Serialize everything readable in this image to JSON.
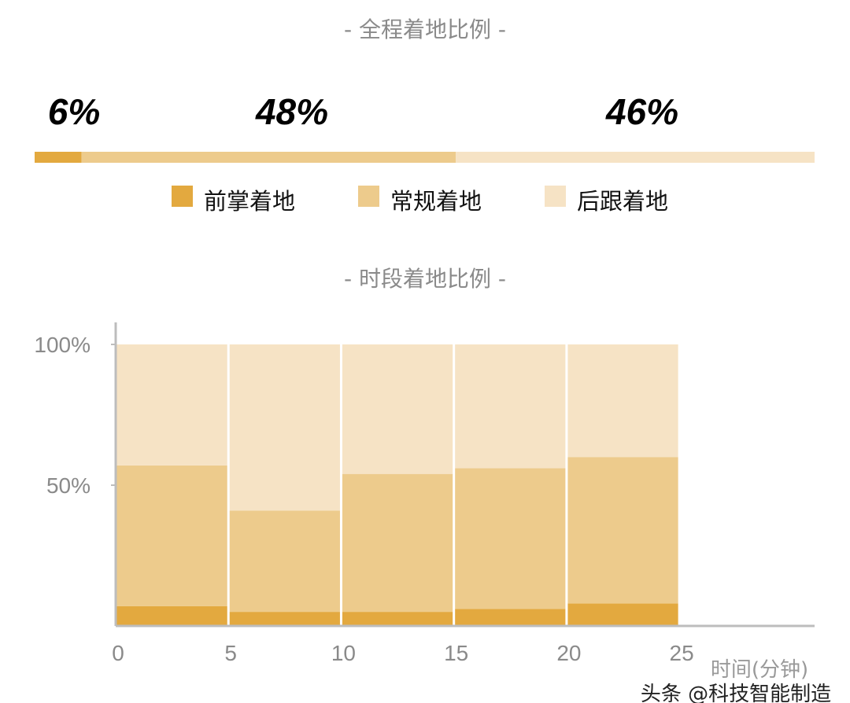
{
  "colors": {
    "forefoot": "#E3A93F",
    "midfoot": "#EDCB8C",
    "heel": "#F6E3C5",
    "axis": "#BDBDBD"
  },
  "watermark": "头条 @科技智能制造",
  "chart_data": [
    {
      "type": "bar",
      "subtype": "stacked-horizontal-100",
      "title": "- 全程着地比例 -",
      "series": [
        {
          "name": "前掌着地",
          "value": 6,
          "label": "6%"
        },
        {
          "name": "常规着地",
          "value": 48,
          "label": "48%"
        },
        {
          "name": "后跟着地",
          "value": 46,
          "label": "46%"
        }
      ],
      "legend": "bottom"
    },
    {
      "type": "bar",
      "subtype": "stacked-100",
      "title": "- 时段着地比例 -",
      "xlabel": "时间(分钟)",
      "x_bins": [
        [
          0,
          5
        ],
        [
          5,
          10
        ],
        [
          10,
          15
        ],
        [
          15,
          20
        ],
        [
          20,
          25
        ]
      ],
      "xticks": [
        "0",
        "5",
        "10",
        "15",
        "20",
        "25"
      ],
      "xlim": [
        0,
        31
      ],
      "yticks": [
        "50%",
        "100%"
      ],
      "ylim": [
        0,
        108
      ],
      "grid": false,
      "series": [
        {
          "name": "前掌着地",
          "values": [
            7,
            5,
            5,
            6,
            8
          ]
        },
        {
          "name": "常规着地",
          "values": [
            50,
            36,
            49,
            50,
            52
          ]
        },
        {
          "name": "后跟着地",
          "values": [
            43,
            59,
            46,
            44,
            40
          ]
        }
      ]
    }
  ]
}
